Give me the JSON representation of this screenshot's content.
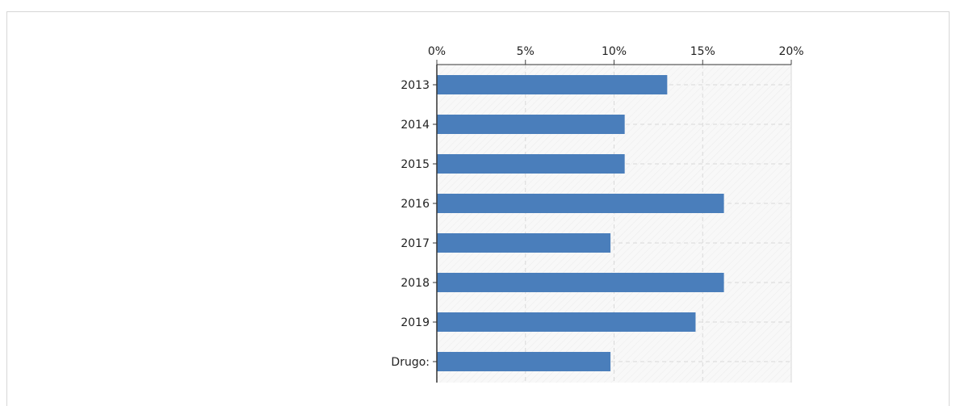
{
  "header": {
    "title": ""
  },
  "chart_data": {
    "type": "bar",
    "orientation": "horizontal",
    "categories": [
      "2013",
      "2014",
      "2015",
      "2016",
      "2017",
      "2018",
      "2019",
      "Drugo:"
    ],
    "values": [
      13.0,
      10.6,
      10.6,
      16.2,
      9.8,
      16.2,
      14.6,
      9.8
    ],
    "x_ticks": [
      "0%",
      "5%",
      "10%",
      "15%",
      "20%"
    ],
    "xlim": [
      0,
      20
    ],
    "x_unit": "%",
    "title": "",
    "xlabel": "",
    "ylabel": "",
    "grid": true,
    "x_axis_position": "top",
    "bar_color": "#4a7ebb",
    "grid_color": "#d9d9d9",
    "plot_background": "#f7f7f7"
  }
}
